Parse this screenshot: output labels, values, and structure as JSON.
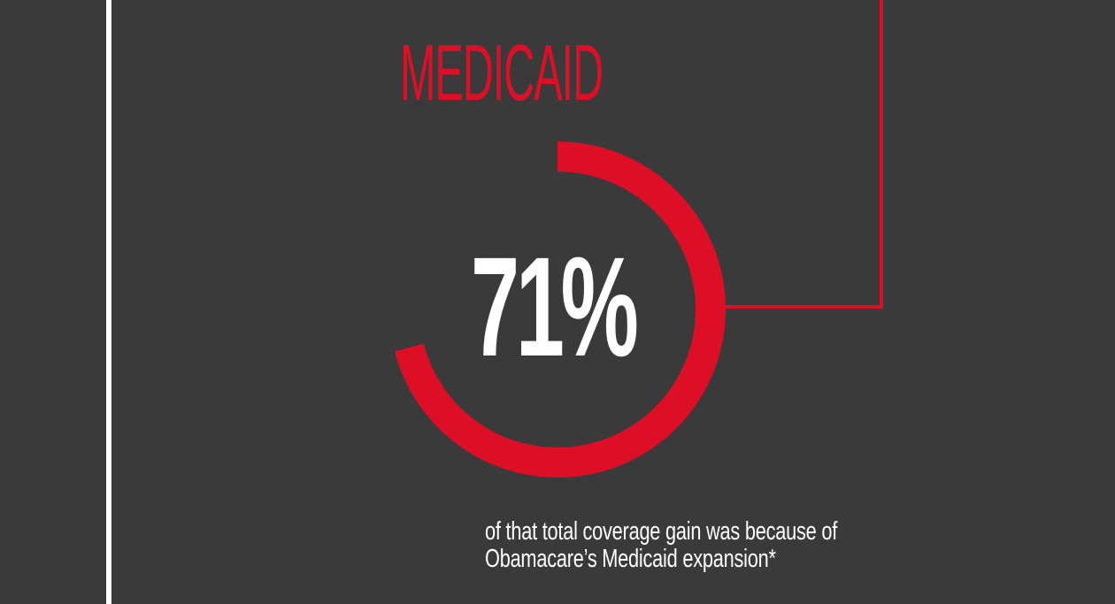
{
  "colors": {
    "background": "#3a3a3b",
    "accent": "#dc0f27",
    "text": "#ffffff"
  },
  "chart_data": {
    "type": "pie",
    "title": "MEDICAID",
    "value_percent": 71,
    "value_label": "71%",
    "caption_lines": [
      "of that total coverage gain was because of",
      "Obamacare’s Medicaid expansion*"
    ]
  }
}
